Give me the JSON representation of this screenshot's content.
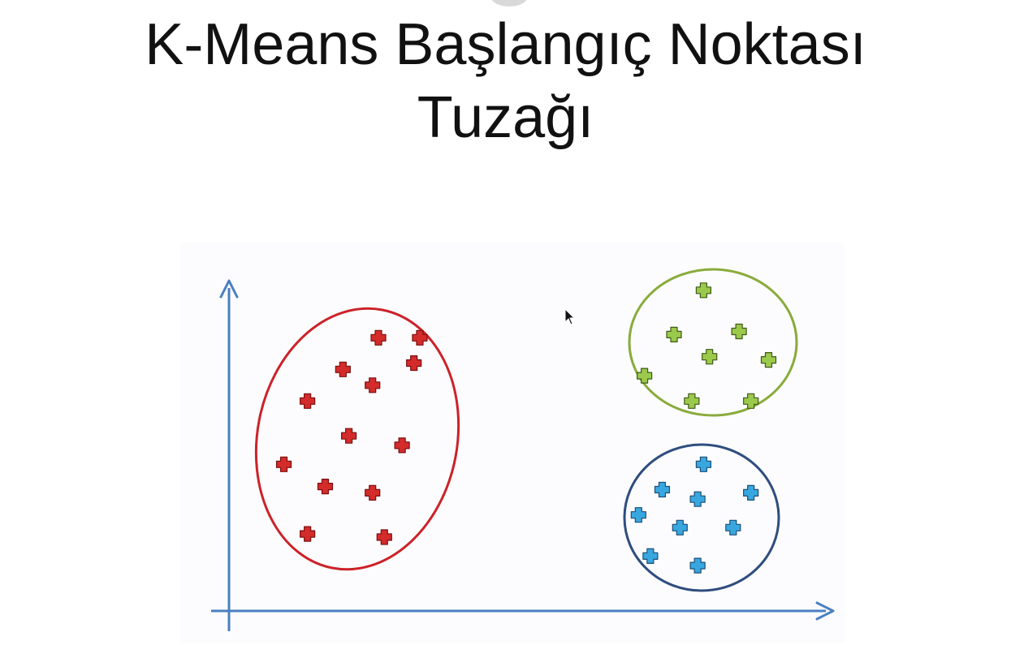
{
  "title": {
    "line1": "K-Means Başlangıç Noktası",
    "line2": "Tuzağı"
  },
  "colors": {
    "axis": "#4a7fc0",
    "cluster_red": "#cc2229",
    "cluster_red_fill": "#d42b2b",
    "cluster_green": "#8aab3c",
    "cluster_green_fill": "#9bc94b",
    "cluster_blue": "#2f4d7e",
    "cluster_blue_fill": "#39a7df"
  },
  "chart_data": {
    "type": "scatter",
    "title": "",
    "xlabel": "",
    "ylabel": "",
    "grid": false,
    "series": [
      {
        "color": "#d42b2b",
        "points": [
          [
            0.25,
            0.83
          ],
          [
            0.32,
            0.83
          ],
          [
            0.19,
            0.73
          ],
          [
            0.31,
            0.75
          ],
          [
            0.24,
            0.68
          ],
          [
            0.13,
            0.63
          ],
          [
            0.2,
            0.52
          ],
          [
            0.29,
            0.49
          ],
          [
            0.09,
            0.43
          ],
          [
            0.16,
            0.36
          ],
          [
            0.24,
            0.34
          ],
          [
            0.13,
            0.21
          ],
          [
            0.26,
            0.2
          ]
        ]
      },
      {
        "color": "#9bc94b",
        "points": [
          [
            0.8,
            0.98
          ],
          [
            0.75,
            0.84
          ],
          [
            0.86,
            0.85
          ],
          [
            0.81,
            0.77
          ],
          [
            0.91,
            0.76
          ],
          [
            0.7,
            0.71
          ],
          [
            0.78,
            0.63
          ],
          [
            0.88,
            0.63
          ]
        ]
      },
      {
        "color": "#39a7df",
        "points": [
          [
            0.8,
            0.43
          ],
          [
            0.73,
            0.35
          ],
          [
            0.88,
            0.34
          ],
          [
            0.79,
            0.32
          ],
          [
            0.69,
            0.27
          ],
          [
            0.76,
            0.23
          ],
          [
            0.85,
            0.23
          ],
          [
            0.71,
            0.14
          ],
          [
            0.79,
            0.11
          ]
        ]
      }
    ],
    "clusters": [
      {
        "shape": "ellipse",
        "color": "#cc2229"
      },
      {
        "shape": "ellipse",
        "color": "#8aab3c"
      },
      {
        "shape": "ellipse",
        "color": "#2f4d7e"
      }
    ]
  }
}
